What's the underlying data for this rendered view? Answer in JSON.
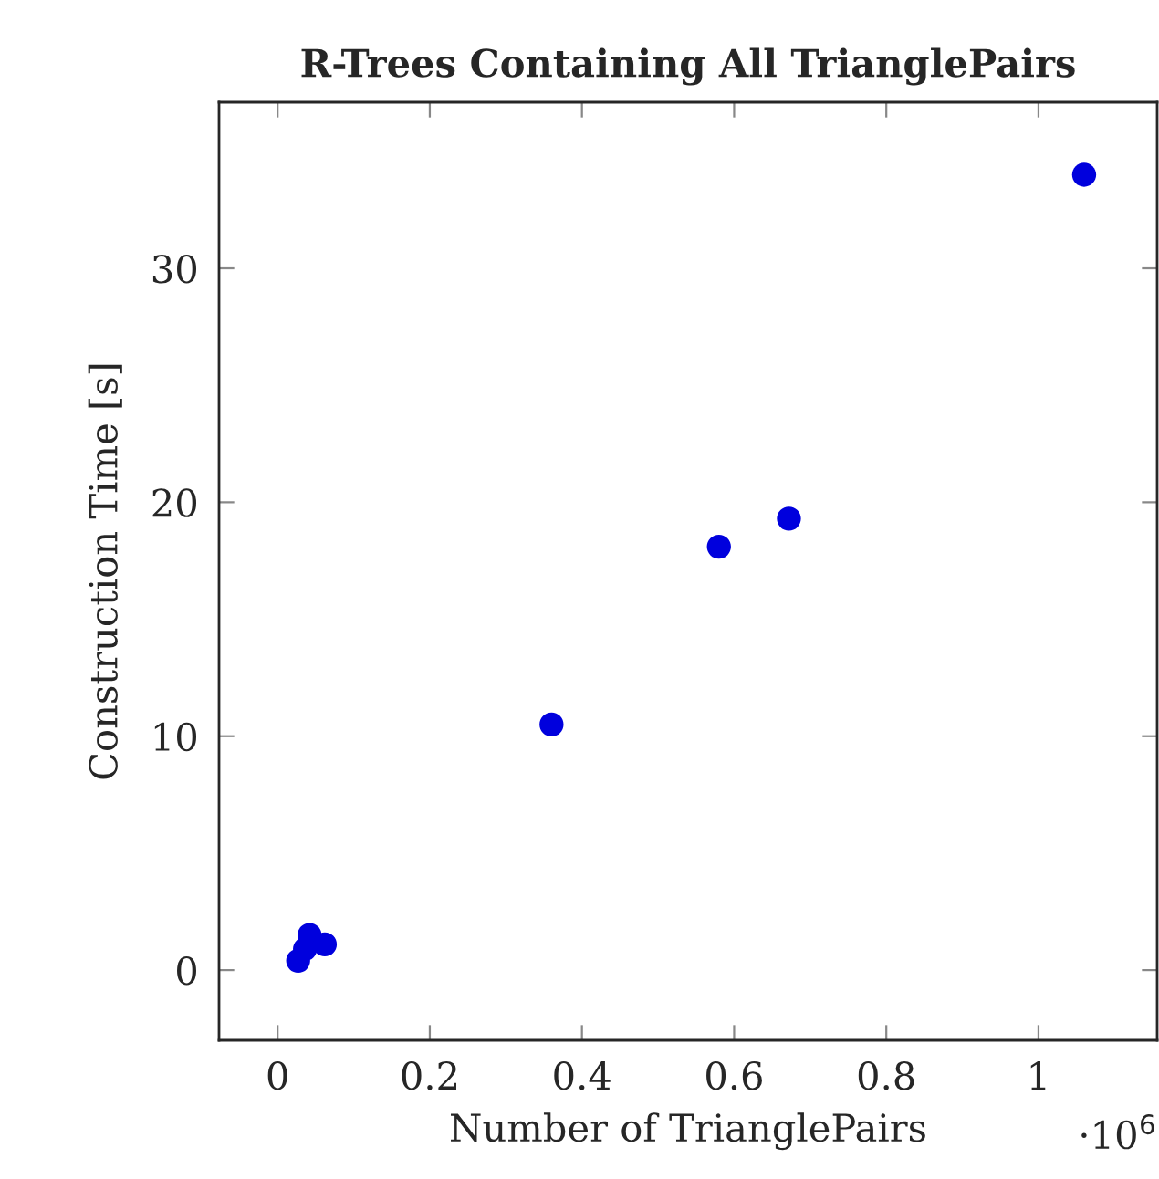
{
  "chart_data": {
    "type": "scatter",
    "title": "R-Trees Containing All TrianglePairs",
    "xlabel": "Number of TrianglePairs",
    "ylabel": "Construction Time [s]",
    "x": [
      0.027,
      0.036,
      0.042,
      0.062,
      0.36,
      0.58,
      0.672,
      1.06
    ],
    "series": [
      {
        "color": "#0000dd",
        "values": [
          0.4,
          0.9,
          1.5,
          1.1,
          10.5,
          18.1,
          19.3,
          34.0
        ]
      }
    ],
    "xlim": [
      -0.077,
      1.156
    ],
    "ylim": [
      -3,
      37.1
    ],
    "xticks": [
      0,
      0.2,
      0.4,
      0.6,
      0.8,
      1
    ],
    "yticks": [
      0,
      10,
      20,
      30
    ],
    "marker": "circle",
    "grid": false,
    "legend": false,
    "annotations": [
      "·10$^{6}$"
    ]
  }
}
